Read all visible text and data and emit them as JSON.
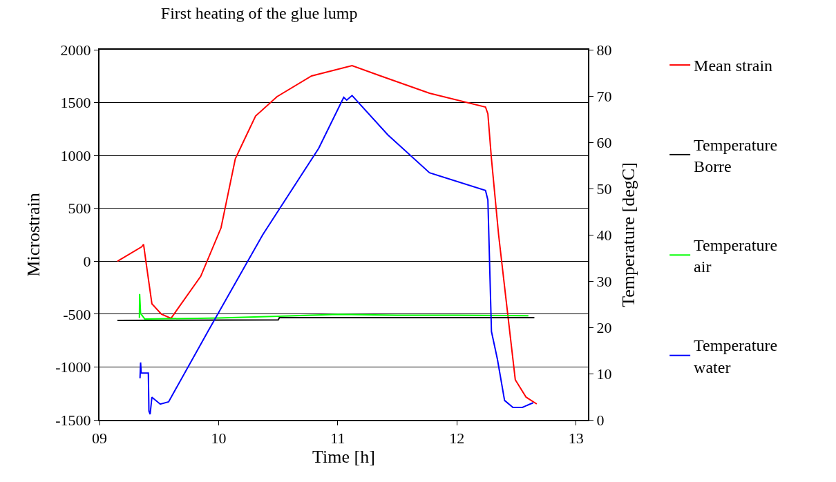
{
  "chart_data": {
    "type": "line",
    "title": "First heating of the glue lump",
    "xlabel": "Time [h]",
    "ylabel": "Microstrain",
    "y2label": "Temperature [degC]",
    "xlim": [
      9,
      13.1
    ],
    "xticks": [
      {
        "value": 9,
        "label": "09"
      },
      10,
      11,
      12,
      13
    ],
    "ylim": [
      -1500,
      2000
    ],
    "yticks": [
      -1500,
      -1000,
      -500,
      0,
      500,
      1000,
      1500,
      2000
    ],
    "y2lim": [
      0,
      80
    ],
    "y2ticks": [
      0,
      10,
      20,
      30,
      40,
      50,
      60,
      70,
      80
    ],
    "grid": "y",
    "legend": "right",
    "marker": "none",
    "line_style": "solid",
    "series": [
      {
        "name": "Mean strain",
        "color": "#ff0000",
        "x": [
          9.15,
          9.355,
          9.37,
          9.395,
          9.44,
          9.52,
          9.6,
          9.85,
          10.02,
          10.14,
          10.2,
          10.31,
          10.49,
          10.78,
          11.12,
          11.36,
          11.77,
          12.24,
          12.26,
          12.29,
          12.35,
          12.41,
          12.49,
          12.58,
          12.67
        ],
        "values": [
          0,
          137,
          160,
          -44,
          -403,
          -501,
          -540,
          -142,
          315,
          968,
          1112,
          1373,
          1556,
          1752,
          1850,
          1752,
          1589,
          1458,
          1393,
          968,
          250,
          -338,
          -1121,
          -1285,
          -1350
        ]
      },
      {
        "name": "Temperature\nBorre",
        "color": "#000000",
        "axis": "y2",
        "x": [
          9.15,
          10.5,
          10.51,
          11.05,
          12.65
        ],
        "values": [
          21.5,
          21.6,
          22.1,
          22.1,
          22.1
        ]
      },
      {
        "name": "Temperature\nair",
        "color": "#00ff00",
        "axis": "y2",
        "x": [
          9.335,
          9.337,
          9.345,
          9.38,
          10.0,
          10.5,
          11.0,
          11.5,
          12.0,
          12.6
        ],
        "values": [
          22.0,
          27.2,
          23.0,
          21.8,
          22.0,
          22.4,
          22.8,
          22.6,
          22.6,
          22.5
        ]
      },
      {
        "name": "Temperature\nwater",
        "color": "#0000ff",
        "axis": "y2",
        "x": [
          9.34,
          9.345,
          9.35,
          9.41,
          9.415,
          9.425,
          9.44,
          9.51,
          9.58,
          9.91,
          10.37,
          10.84,
          11.05,
          11.075,
          11.12,
          11.42,
          11.77,
          12.24,
          12.26,
          12.29,
          12.34,
          12.4,
          12.47,
          12.55,
          12.64
        ],
        "values": [
          9,
          12.4,
          10.1,
          10.1,
          1.9,
          1.2,
          4.9,
          3.4,
          3.9,
          19.1,
          40,
          58.7,
          69.7,
          69.1,
          70.1,
          61.6,
          53.4,
          49.6,
          47.5,
          19.1,
          13.1,
          4.2,
          2.7,
          2.7,
          3.7
        ]
      }
    ]
  }
}
